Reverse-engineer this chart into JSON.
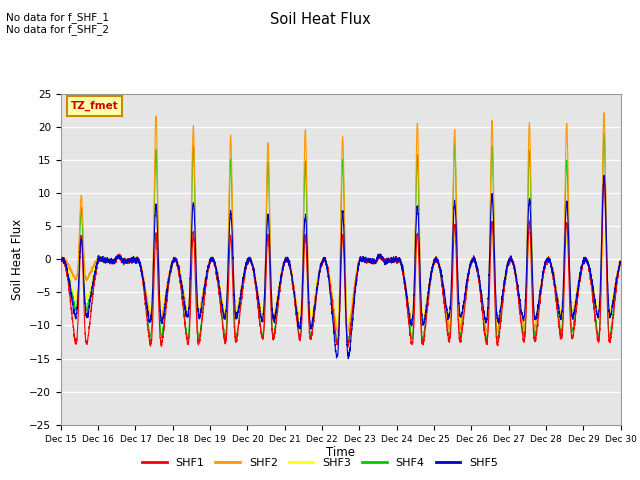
{
  "title": "Soil Heat Flux",
  "ylabel": "Soil Heat Flux",
  "xlabel": "Time",
  "annotation_text": "No data for f_SHF_1\nNo data for f_SHF_2",
  "legend_label_text": "TZ_fmet",
  "ylim": [
    -25,
    25
  ],
  "series_labels": [
    "SHF1",
    "SHF2",
    "SHF3",
    "SHF4",
    "SHF5"
  ],
  "series_colors": [
    "#ff0000",
    "#ff9900",
    "#ffff00",
    "#00cc00",
    "#0000cc"
  ],
  "background_color": "#e8e8e8",
  "plot_bg_color": "#e5e5e5",
  "x_tick_labels": [
    "Dec 15",
    "Dec 16",
    "Dec 17",
    "Dec 18",
    "Dec 19",
    "Dec 20",
    "Dec 21",
    "Dec 22",
    "Dec 23",
    "Dec 24",
    "Dec 25",
    "Dec 26",
    "Dec 27",
    "Dec 28",
    "Dec 29",
    "Dec 30"
  ],
  "yticks": [
    -25,
    -20,
    -15,
    -10,
    -5,
    0,
    5,
    10,
    15,
    20,
    25
  ],
  "num_days": 15,
  "points_per_day": 288,
  "shf2_day_peaks": [
    9.5,
    0.5,
    21.5,
    20.0,
    18.5,
    17.5,
    19.5,
    18.5,
    0.5,
    20.5,
    19.5,
    21.0,
    20.5,
    20.5,
    22.0
  ],
  "shf4_day_peaks": [
    7.5,
    0.5,
    16.5,
    17.0,
    15.0,
    14.5,
    14.5,
    15.0,
    0.5,
    15.5,
    17.5,
    17.0,
    16.5,
    15.0,
    19.0
  ],
  "shf1_day_peaks": [
    3.5,
    0.5,
    3.5,
    4.0,
    3.5,
    3.5,
    3.5,
    3.5,
    0.5,
    4.0,
    5.0,
    5.5,
    5.5,
    5.5,
    12.0
  ],
  "shf5_day_peaks": [
    3.0,
    0.5,
    8.0,
    8.5,
    7.0,
    6.5,
    6.5,
    7.0,
    0.5,
    8.0,
    8.5,
    9.5,
    9.0,
    8.5,
    12.5
  ],
  "shf3_day_peaks": [
    2.5,
    0.5,
    3.0,
    3.5,
    3.0,
    2.5,
    2.5,
    3.0,
    0.5,
    3.0,
    3.5,
    3.5,
    3.5,
    3.0,
    4.0
  ],
  "shf1_night_depths": [
    17.0,
    0.5,
    17.0,
    17.0,
    16.5,
    16.0,
    16.0,
    17.0,
    0.5,
    17.0,
    16.5,
    17.0,
    16.5,
    16.0,
    17.0
  ],
  "shf2_night_depths": [
    4.0,
    0.5,
    11.5,
    11.0,
    11.5,
    12.0,
    13.0,
    14.0,
    0.5,
    13.0,
    13.5,
    14.0,
    13.5,
    11.5,
    11.5
  ],
  "shf3_night_depths": [
    8.5,
    0.5,
    11.0,
    11.0,
    11.0,
    11.5,
    12.0,
    13.5,
    0.5,
    12.5,
    13.5,
    13.5,
    13.0,
    11.0,
    11.0
  ],
  "shf4_night_depths": [
    10.0,
    0.5,
    15.5,
    16.0,
    15.5,
    15.5,
    15.5,
    16.5,
    0.5,
    16.0,
    15.5,
    16.0,
    15.5,
    14.5,
    15.5
  ],
  "shf5_night_depths": [
    12.0,
    0.5,
    13.5,
    12.5,
    12.5,
    13.0,
    14.5,
    20.5,
    0.5,
    14.0,
    12.5,
    13.5,
    13.0,
    12.5,
    12.5
  ]
}
